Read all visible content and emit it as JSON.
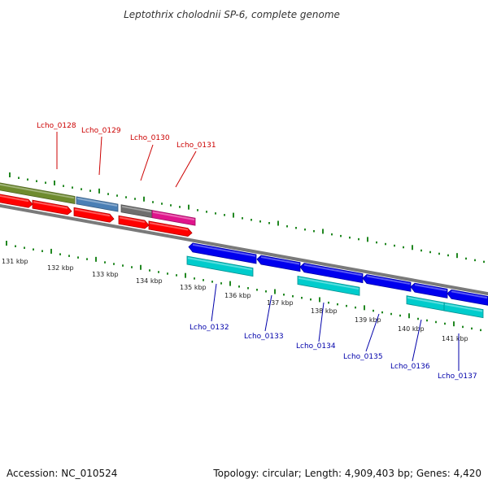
{
  "title": "Leptothrix cholodnii SP-6, complete genome",
  "footer": {
    "accession": "Accession: NC_010524",
    "summary": "Topology: circular; Length: 4,909,403 bp; Genes: 4,420"
  },
  "colors": {
    "forward_label": "#cc0000",
    "reverse_label": "#0000aa",
    "backbone": "#888888",
    "ticks": "#228822",
    "cds_forward": "#ff0000",
    "cds_reverse": "#0000ee",
    "gene_reverse": "#00cccc"
  },
  "scale_labels": [
    "131 kbp",
    "132 kbp",
    "133 kbp",
    "134 kbp",
    "135 kbp",
    "136 kbp",
    "137 kbp",
    "138 kbp",
    "139 kbp",
    "140 kbp",
    "141 kbp"
  ],
  "forward_genes": [
    {
      "label": "Lcho_0128",
      "color": "#6e8b2e"
    },
    {
      "label": "Lcho_0129",
      "color": "#4a7fb5"
    },
    {
      "label": "Lcho_0130",
      "color": "#6e6e6e"
    },
    {
      "label": "Lcho_0131",
      "color": "#e0148c"
    }
  ],
  "reverse_genes": [
    {
      "label": "Lcho_0132"
    },
    {
      "label": "Lcho_0133"
    },
    {
      "label": "Lcho_0134"
    },
    {
      "label": "Lcho_0135"
    },
    {
      "label": "Lcho_0136"
    },
    {
      "label": "Lcho_0137"
    }
  ]
}
